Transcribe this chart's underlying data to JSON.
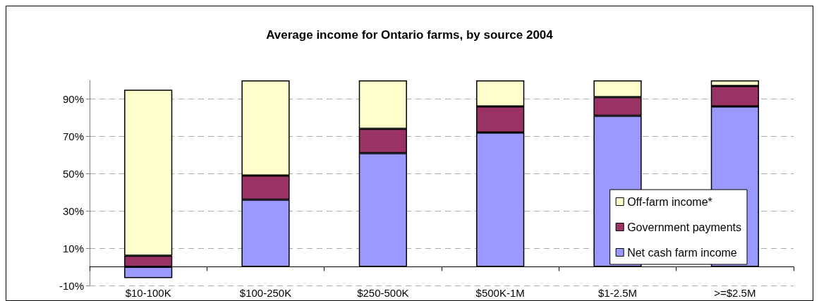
{
  "chart_data": {
    "type": "bar",
    "title": "Average income for Ontario farms, by source 2004",
    "categories": [
      "$10-100K",
      "$100-250K",
      "$250-500K",
      "$500K-1M",
      "$1-2.5M",
      ">=$2.5M"
    ],
    "stacked": true,
    "series": [
      {
        "name": "Net cash farm income",
        "color": "#9999ff",
        "values": [
          -6,
          36,
          61,
          72,
          81,
          86
        ]
      },
      {
        "name": "Government payments",
        "color": "#993366",
        "values": [
          6,
          13,
          13,
          14,
          10,
          11
        ]
      },
      {
        "name": "Off-farm income*",
        "color": "#ffffcc",
        "values": [
          89,
          51,
          26,
          14,
          9,
          3
        ]
      }
    ],
    "ylim": [
      -10,
      100
    ],
    "yticks": [
      {
        "value": -10,
        "label": "-10%"
      },
      {
        "value": 10,
        "label": "10%"
      },
      {
        "value": 30,
        "label": "30%"
      },
      {
        "value": 50,
        "label": "50%"
      },
      {
        "value": 70,
        "label": "70%"
      },
      {
        "value": 90,
        "label": "90%"
      }
    ],
    "grid": "y",
    "legend": "bottom right"
  }
}
